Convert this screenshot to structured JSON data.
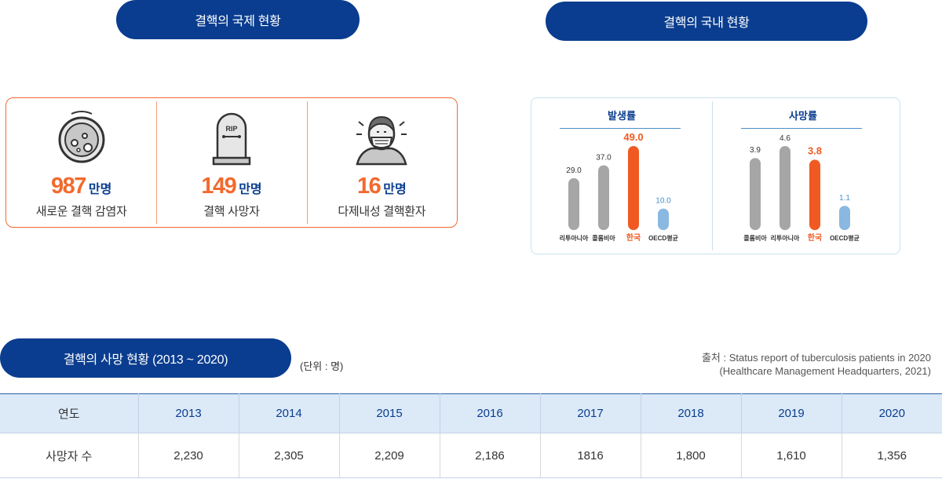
{
  "headers": {
    "international": "결핵의 국제 현황",
    "domestic": "결핵의 국내 현황",
    "death": "결핵의 사망 현황 (2013 ~ 2020)"
  },
  "international": {
    "items": [
      {
        "number": "987",
        "unit": "만명",
        "label": "새로운 결핵 감염자",
        "icon": "bacteria-petri-icon"
      },
      {
        "number": "149",
        "unit": "만명",
        "label": "결핵 사망자",
        "icon": "tombstone-rip-icon",
        "icon_text": "RIP"
      },
      {
        "number": "16",
        "unit": "만명",
        "label": "다제내성 결핵환자",
        "icon": "masked-patient-icon"
      }
    ]
  },
  "domestic": {
    "chart_data": [
      {
        "type": "bar",
        "title": "발생률",
        "categories": [
          "리투아니아",
          "콜롬비아",
          "한국",
          "OECD평균"
        ],
        "values": [
          29.0,
          37.0,
          49.0,
          10.0
        ],
        "labels": [
          "29.0",
          "37.0",
          "49.0",
          "10.0"
        ],
        "colors": [
          "#a6a6a6",
          "#a6a6a6",
          "#f05a22",
          "#8ab8e0"
        ],
        "label_colors": [
          "#333333",
          "#333333",
          "#f05a22",
          "#4a90c8"
        ],
        "ylim": [
          0,
          49.0
        ]
      },
      {
        "type": "bar",
        "title": "사망률",
        "categories": [
          "콜롬비아",
          "리투아니아",
          "한국",
          "OECD평균"
        ],
        "values": [
          3.9,
          4.6,
          3.8,
          1.1
        ],
        "labels": [
          "3.9",
          "4.6",
          "3.8",
          "1.1"
        ],
        "colors": [
          "#a6a6a6",
          "#a6a6a6",
          "#f05a22",
          "#8ab8e0"
        ],
        "label_colors": [
          "#333333",
          "#333333",
          "#f05a22",
          "#4a90c8"
        ],
        "ylim": [
          0,
          4.6
        ]
      }
    ]
  },
  "unit": "(단위 : 명)",
  "source": {
    "line1": "출처 : Status report of tuberculosis patients in 2020",
    "line2": "(Healthcare Management Headquarters, 2021)"
  },
  "table": {
    "header_label": "연도",
    "years": [
      "2013",
      "2014",
      "2015",
      "2016",
      "2017",
      "2018",
      "2019",
      "2020"
    ],
    "row_label": "사망자 수",
    "values": [
      "2,230",
      "2,305",
      "2,209",
      "2,186",
      "1816",
      "1,800",
      "1,610",
      "1,356"
    ]
  },
  "colors": {
    "navy": "#0a3d8f",
    "orange": "#f26a2e",
    "table_header_bg": "#dceaf8"
  }
}
